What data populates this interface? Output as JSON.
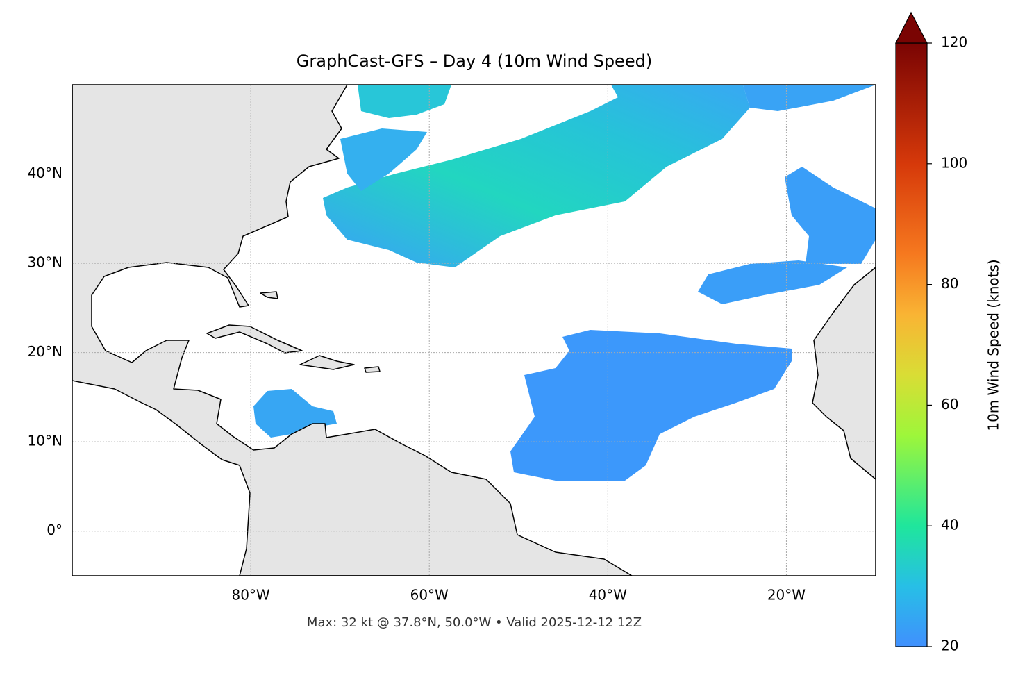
{
  "chart_data": {
    "type": "map",
    "title": "GraphCast-GFS – Day 4 (10m Wind Speed)",
    "annotation": "Max: 32 kt @ 37.8°N, 50.0°W • Valid 2025-12-12 12Z",
    "xlim": [
      -100,
      -10
    ],
    "ylim": [
      -5,
      50
    ],
    "xticks": [
      {
        "value": -80,
        "label": "80°W"
      },
      {
        "value": -60,
        "label": "60°W"
      },
      {
        "value": -40,
        "label": "40°W"
      },
      {
        "value": -20,
        "label": "20°W"
      }
    ],
    "yticks": [
      {
        "value": 0,
        "label": "0°"
      },
      {
        "value": 10,
        "label": "10°N"
      },
      {
        "value": 20,
        "label": "20°N"
      },
      {
        "value": 30,
        "label": "30°N"
      },
      {
        "value": 40,
        "label": "40°N"
      }
    ],
    "grid": true,
    "colorbar": {
      "label": "10m Wind Speed (knots)",
      "lim": [
        20,
        120
      ],
      "ticks": [
        20,
        40,
        60,
        80,
        100,
        120
      ],
      "extend": "max"
    }
  }
}
